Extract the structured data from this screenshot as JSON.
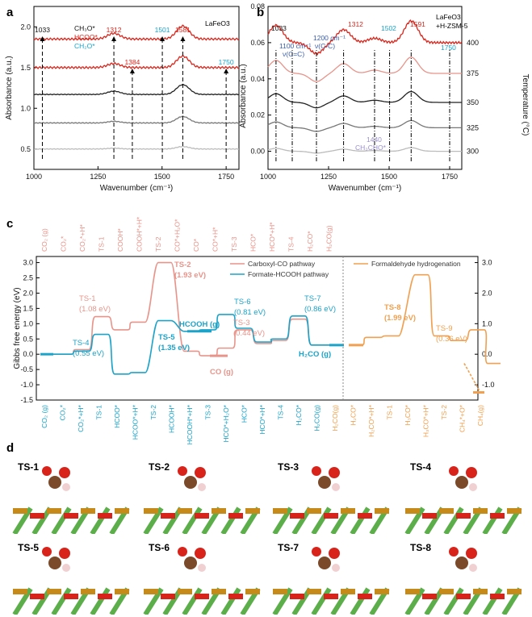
{
  "panels": {
    "a": "a",
    "b": "b",
    "c": "c",
    "d": "d"
  },
  "chart_data": [
    {
      "id": "a",
      "type": "line",
      "title": "LaFeO3",
      "xlabel": "Wavenumber (cm⁻¹)",
      "ylabel": "Absorbance (a.u.)",
      "xlim": [
        1000,
        1800
      ],
      "ylim": [
        0.25,
        2.25
      ],
      "x_ticks": [
        "1000",
        "1250",
        "1500",
        "1750"
      ],
      "x_tick_values": [
        1000,
        1250,
        1500,
        1750
      ],
      "y_ticks": [
        "0.5",
        "1.0",
        "1.5",
        "2.0"
      ],
      "y_tick_values": [
        0.5,
        1.0,
        1.5,
        2.0
      ],
      "legend": [
        {
          "label": "CH₃O*",
          "color": "#111111"
        },
        {
          "label": "HCOO*",
          "color": "#d9261c"
        },
        {
          "label": "CH₂O*",
          "color": "#1ca3c9"
        }
      ],
      "peaks": [
        {
          "label": "1033",
          "x": 1033,
          "color": "#111111"
        },
        {
          "label": "1312",
          "x": 1312,
          "color": "#d9261c"
        },
        {
          "label": "1384",
          "x": 1384,
          "color": "#d9261c"
        },
        {
          "label": "1501",
          "x": 1501,
          "color": "#1ca3c9"
        },
        {
          "label": "1581",
          "x": 1581,
          "color": "#d9261c"
        },
        {
          "label": "1750",
          "x": 1750,
          "color": "#1ca3c9"
        }
      ],
      "series": [
        {
          "color": "#d9261c",
          "baseline": 1.85,
          "peaks": [
            [
              1312,
              0.07
            ],
            [
              1581,
              0.16
            ]
          ]
        },
        {
          "color": "#d9261c",
          "baseline": 1.5,
          "peaks": [
            [
              1312,
              0.05
            ],
            [
              1581,
              0.14
            ]
          ]
        },
        {
          "color": "#222222",
          "baseline": 1.17,
          "peaks": [
            [
              1312,
              0.04
            ],
            [
              1581,
              0.12
            ]
          ]
        },
        {
          "color": "#777777",
          "baseline": 0.82,
          "peaks": [
            [
              1312,
              0.02
            ],
            [
              1581,
              0.08
            ]
          ]
        },
        {
          "color": "#bbbbbb",
          "baseline": 0.5,
          "peaks": [
            [
              1312,
              0.01
            ],
            [
              1581,
              0.03
            ]
          ]
        }
      ]
    },
    {
      "id": "b",
      "type": "line",
      "title": "LaFeO3 +H-ZSM-5",
      "xlabel": "Wavenumber (cm⁻¹)",
      "ylabel": "Absorbance (a.u.)",
      "y2label": "Temperature (°C)",
      "xlim": [
        1000,
        1800
      ],
      "ylim": [
        -0.01,
        0.08
      ],
      "x_ticks": [
        "1000",
        "1250",
        "1500",
        "1750"
      ],
      "x_tick_values": [
        1000,
        1250,
        1500,
        1750
      ],
      "y_ticks": [
        "0.00",
        "0.02",
        "0.04",
        "0.06",
        "0.08"
      ],
      "y_tick_values": [
        0.0,
        0.02,
        0.04,
        0.06,
        0.08
      ],
      "annotations": [
        {
          "label": "1033",
          "color": "#111111"
        },
        {
          "label": "1100 cm⁻¹",
          "color": "#3a5cad"
        },
        {
          "label": "ν(C=C)",
          "color": "#3a5cad"
        },
        {
          "label": "1200 cm⁻¹",
          "color": "#3a5cad"
        },
        {
          "label": "ν(C-C)",
          "color": "#3a5cad"
        },
        {
          "label": "1312",
          "color": "#d9261c"
        },
        {
          "label": "1440",
          "color": "#9a8fc9"
        },
        {
          "label": "CH₃CHO*",
          "color": "#9a8fc9"
        },
        {
          "label": "1502",
          "color": "#1ca3c9"
        },
        {
          "label": "1591",
          "color": "#d9261c"
        },
        {
          "label": "1750",
          "color": "#1ca3c9"
        }
      ],
      "series": [
        {
          "name": "400",
          "color": "#d9261c",
          "baseline": 0.06
        },
        {
          "name": "375",
          "color": "#e8948a",
          "baseline": 0.043
        },
        {
          "name": "350",
          "color": "#222222",
          "baseline": 0.027
        },
        {
          "name": "325",
          "color": "#777777",
          "baseline": 0.013
        },
        {
          "name": "300",
          "color": "#bbbbbb",
          "baseline": 0.0
        }
      ]
    },
    {
      "id": "c",
      "type": "line",
      "ylabel": "Gibbs free energy (eV)",
      "ylim": [
        -1.5,
        3.2
      ],
      "y_ticks": [
        "-1.5",
        "-1.0",
        "-0.5",
        "0.0",
        "0.5",
        "1.0",
        "1.5",
        "2.0",
        "2.5",
        "3.0"
      ],
      "y_tick_values": [
        -1.5,
        -1.0,
        -0.5,
        0.0,
        0.5,
        1.0,
        1.5,
        2.0,
        2.5,
        3.0
      ],
      "y2_ticks": [
        "-1.0",
        "0.0",
        "1.0",
        "2.0",
        "3.0"
      ],
      "y2_tick_values": [
        -1.0,
        0.0,
        1.0,
        2.0,
        3.0
      ],
      "legend": [
        {
          "label": "Carboxyl-CO pathway",
          "color": "#e8948a"
        },
        {
          "label": "Formate-HCOOH pathway",
          "color": "#1ca3c9"
        },
        {
          "label": "Formaldehyde hydrogenation",
          "color": "#f0a050"
        }
      ],
      "top_labels": [
        "CO₂ (g)",
        "CO₂*",
        "CO₂*+H*",
        "TS-1",
        "COOH*",
        "COOH*+H*",
        "TS-2",
        "CO*+H₂O*",
        "CO*",
        "CO*+H*",
        "TS-3",
        "HCO*",
        "HCO*+H*",
        "TS-4",
        "H₂CO*",
        "H₂CO(g)"
      ],
      "bottom_labels": [
        "CO₂ (g)",
        "CO₂*",
        "CO₂*+H*",
        "TS-1",
        "HCOO*",
        "HCOO*+H*",
        "TS-2",
        "HCOOH*",
        "HCOOH*+H*",
        "TS-3",
        "HCO*+H₂O*",
        "HCO*",
        "HCO*+H*",
        "TS-4",
        "H₂CO*",
        "H₂CO(g)",
        "H₂CO(g)",
        "H₂CO*",
        "H₂CO*+H*",
        "TS-1",
        "H₃CO*",
        "H₃CO*+H*",
        "TS-2",
        "CH₄*+O*",
        "CH₄(g)"
      ],
      "ts_labels": [
        {
          "name": "TS-1",
          "value": "(1.08 eV)",
          "color": "#e8948a"
        },
        {
          "name": "TS-2",
          "value": "(1.93 eV)",
          "color": "#e8948a"
        },
        {
          "name": "TS-3",
          "value": "(0.44 eV)",
          "color": "#e8948a"
        },
        {
          "name": "TS-4",
          "value": "(0.55 eV)",
          "color": "#1ca3c9"
        },
        {
          "name": "TS-5",
          "value": "(1.35 eV)",
          "color": "#1ca3c9"
        },
        {
          "name": "TS-6",
          "value": "(0.81 eV)",
          "color": "#1ca3c9"
        },
        {
          "name": "TS-7",
          "value": "(0.86 eV)",
          "color": "#1ca3c9"
        },
        {
          "name": "TS-8",
          "value": "(1.99 eV)",
          "color": "#f0a050"
        },
        {
          "name": "TS-9",
          "value": "(0.36 eV)",
          "color": "#f0a050"
        }
      ],
      "species_labels": [
        {
          "label": "HCOOH (g)",
          "color": "#1ca3c9"
        },
        {
          "label": "CO (g)",
          "color": "#e8948a"
        },
        {
          "label": "H₂CO (g)",
          "color": "#1ca3c9"
        }
      ],
      "series": [
        {
          "name": "Carboxyl-CO pathway",
          "color": "#e8948a",
          "levels": [
            0.0,
            0.0,
            0.15,
            1.23,
            0.8,
            1.05,
            3.0,
            0.1,
            -0.05,
            0.2,
            0.8,
            0.35,
            0.45,
            1.15,
            0.3,
            0.3
          ]
        },
        {
          "name": "Formate-HCOOH pathway",
          "color": "#1ca3c9",
          "levels": [
            0.0,
            0.0,
            0.1,
            0.65,
            -0.65,
            -0.6,
            1.1,
            0.75,
            0.8,
            1.3,
            0.85,
            0.4,
            0.5,
            1.25,
            0.3,
            0.3
          ]
        },
        {
          "name": "Formaldehyde hydrogenation",
          "color": "#f0a050",
          "levels": [
            0.3,
            0.55,
            0.6,
            2.6,
            0.6,
            0.45,
            0.8,
            -0.3,
            -1.25
          ]
        }
      ]
    }
  ],
  "structures": {
    "labels": [
      "TS-1",
      "TS-2",
      "TS-3",
      "TS-4",
      "TS-5",
      "TS-6",
      "TS-7",
      "TS-8"
    ]
  }
}
